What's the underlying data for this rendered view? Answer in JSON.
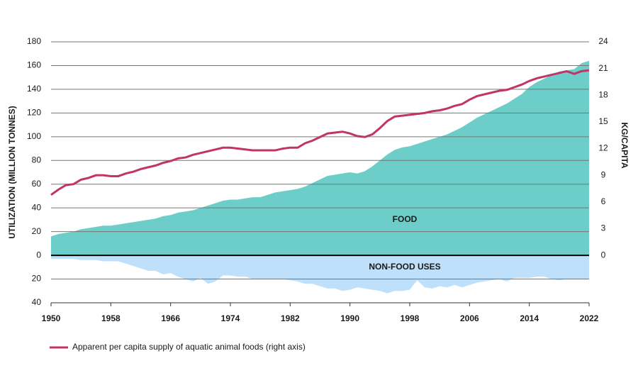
{
  "chart_data": {
    "type": "area",
    "ylabel": "UTILIZATION (MILLION TONNES)",
    "y2label": "KG/CAPITA",
    "x": [
      1950,
      1951,
      1952,
      1953,
      1954,
      1955,
      1956,
      1957,
      1958,
      1959,
      1960,
      1961,
      1962,
      1963,
      1964,
      1965,
      1966,
      1967,
      1968,
      1969,
      1970,
      1971,
      1972,
      1973,
      1974,
      1975,
      1976,
      1977,
      1978,
      1979,
      1980,
      1981,
      1982,
      1983,
      1984,
      1985,
      1986,
      1987,
      1988,
      1989,
      1990,
      1991,
      1992,
      1993,
      1994,
      1995,
      1996,
      1997,
      1998,
      1999,
      2000,
      2001,
      2002,
      2003,
      2004,
      2005,
      2006,
      2007,
      2008,
      2009,
      2010,
      2011,
      2012,
      2013,
      2014,
      2015,
      2016,
      2017,
      2018,
      2019,
      2020,
      2021,
      2022
    ],
    "xlim": [
      1950,
      2022
    ],
    "xticks": [
      1950,
      1958,
      1966,
      1974,
      1982,
      1990,
      1998,
      2006,
      2014,
      2022
    ],
    "ylim": [
      -40,
      180
    ],
    "yticks": [
      {
        "value": -40,
        "label": "40"
      },
      {
        "value": -20,
        "label": "20"
      },
      0,
      20,
      40,
      60,
      80,
      100,
      120,
      140,
      160,
      180
    ],
    "y2lim": [
      -5.333,
      24
    ],
    "y2ticks": [
      0,
      3,
      6,
      9,
      12,
      15,
      18,
      21,
      24
    ],
    "grid": true,
    "legend": "bottom-left",
    "series": [
      {
        "name": "FOOD",
        "type": "area",
        "color": "#6dcdc8",
        "values": [
          16,
          18,
          19,
          20,
          22,
          23,
          24,
          25,
          25,
          26,
          27,
          28,
          29,
          30,
          31,
          33,
          34,
          36,
          37,
          38,
          40,
          42,
          44,
          46,
          47,
          47,
          48,
          49,
          49,
          51,
          53,
          54,
          55,
          56,
          58,
          61,
          64,
          67,
          68,
          69,
          70,
          69,
          71,
          75,
          80,
          85,
          89,
          91,
          92,
          94,
          96,
          98,
          100,
          102,
          105,
          108,
          112,
          116,
          119,
          122,
          125,
          128,
          132,
          136,
          142,
          146,
          149,
          152,
          155,
          156,
          157,
          162,
          164
        ]
      },
      {
        "name": "NON-FOOD USES",
        "type": "area",
        "color": "#bfe0fa",
        "values": [
          -3,
          -3,
          -3,
          -3,
          -4,
          -4,
          -4,
          -5,
          -5,
          -5,
          -7,
          -9,
          -11,
          -13,
          -13,
          -16,
          -15,
          -18,
          -20,
          -22,
          -19,
          -24,
          -22,
          -17,
          -17,
          -18,
          -18,
          -20,
          -20,
          -20,
          -20,
          -20,
          -21,
          -22,
          -24,
          -24,
          -26,
          -28,
          -28,
          -30,
          -29,
          -27,
          -28,
          -29,
          -30,
          -32,
          -30,
          -30,
          -29,
          -21,
          -27,
          -28,
          -26,
          -27,
          -25,
          -27,
          -25,
          -23,
          -22,
          -21,
          -20,
          -22,
          -19,
          -19,
          -19,
          -18,
          -18,
          -20,
          -21,
          -20,
          -20,
          -20,
          -20
        ]
      },
      {
        "name": "Apparent per capita supply of aquatic animal foods (right axis)",
        "type": "line",
        "axis": "y2",
        "color": "#c2336a",
        "values": [
          6.8,
          7.4,
          7.9,
          8.0,
          8.5,
          8.7,
          9.0,
          9.0,
          8.9,
          8.9,
          9.2,
          9.4,
          9.7,
          9.9,
          10.1,
          10.4,
          10.6,
          10.9,
          11.0,
          11.3,
          11.5,
          11.7,
          11.9,
          12.1,
          12.1,
          12.0,
          11.9,
          11.8,
          11.8,
          11.8,
          11.8,
          12.0,
          12.1,
          12.1,
          12.6,
          12.9,
          13.3,
          13.7,
          13.8,
          13.9,
          13.7,
          13.4,
          13.3,
          13.6,
          14.3,
          15.1,
          15.6,
          15.7,
          15.8,
          15.9,
          16.0,
          16.2,
          16.3,
          16.5,
          16.8,
          17.0,
          17.5,
          17.9,
          18.1,
          18.3,
          18.5,
          18.6,
          18.9,
          19.2,
          19.6,
          19.9,
          20.1,
          20.3,
          20.5,
          20.7,
          20.4,
          20.7,
          20.8
        ]
      }
    ]
  }
}
